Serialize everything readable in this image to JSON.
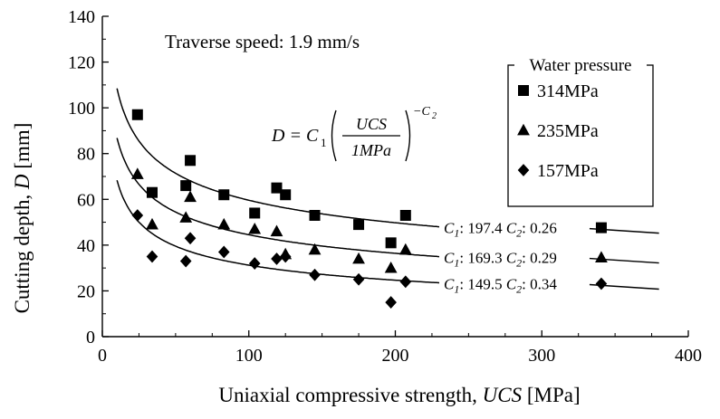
{
  "chart_data": {
    "type": "scatter",
    "annotation": "Traverse speed: 1.9 mm/s",
    "xlabel": {
      "main": "Uniaxial compressive strength, ",
      "ital": "UCS",
      "unit": " [MPa]"
    },
    "ylabel": {
      "main": "Cutting depth, ",
      "ital": "D",
      "unit": " [mm]"
    },
    "xlim": [
      0,
      400
    ],
    "ylim": [
      0,
      140
    ],
    "xticks": [
      0,
      100,
      200,
      300,
      400
    ],
    "yticks": [
      0,
      20,
      40,
      60,
      80,
      100,
      120,
      140
    ],
    "grid": false,
    "legend": {
      "title": "Water pressure",
      "placement": "top-right",
      "entries": [
        "314MPa",
        "235MPa",
        "157MPa"
      ]
    },
    "formula": {
      "lhs": "D = C",
      "sub1": "1",
      "numerator": "UCS",
      "denominator": "1MPa",
      "exp": "−C",
      "exp_sub": "2"
    },
    "series": [
      {
        "name": "314MPa",
        "marker": "square",
        "points": [
          [
            24,
            97
          ],
          [
            34,
            63
          ],
          [
            57,
            66
          ],
          [
            60,
            77
          ],
          [
            83,
            62
          ],
          [
            104,
            54
          ],
          [
            119,
            65
          ],
          [
            125,
            62
          ],
          [
            145,
            53
          ],
          [
            175,
            49
          ],
          [
            197,
            41
          ],
          [
            207,
            53
          ]
        ],
        "fit": {
          "C1": "197.4",
          "C2": "0.26",
          "c1": 197.4,
          "c2": 0.26,
          "x_range": [
            10,
            230
          ]
        },
        "fit_label": {
          "c1_prefix": "C",
          "c1_sub": "1",
          "c1_value": ": 197.4",
          "c2_prefix": "C",
          "c2_sub": "2",
          "c2_value": ": 0.26"
        },
        "legend_fit_x": [
          340,
          380
        ]
      },
      {
        "name": "235MPa",
        "marker": "triangle",
        "points": [
          [
            24,
            71
          ],
          [
            34,
            49
          ],
          [
            57,
            52
          ],
          [
            60,
            61
          ],
          [
            83,
            49
          ],
          [
            104,
            47
          ],
          [
            119,
            46
          ],
          [
            125,
            36
          ],
          [
            145,
            38
          ],
          [
            175,
            34
          ],
          [
            197,
            30
          ],
          [
            207,
            38
          ]
        ],
        "fit": {
          "C1": "169.3",
          "C2": "0.29",
          "c1": 169.3,
          "c2": 0.29,
          "x_range": [
            10,
            230
          ]
        },
        "fit_label": {
          "c1_prefix": "C",
          "c1_sub": "1",
          "c1_value": ": 169.3",
          "c2_prefix": "C",
          "c2_sub": "2",
          "c2_value": ": 0.29"
        },
        "legend_fit_x": [
          340,
          380
        ]
      },
      {
        "name": "157MPa",
        "marker": "diamond",
        "points": [
          [
            24,
            53
          ],
          [
            34,
            35
          ],
          [
            57,
            33
          ],
          [
            60,
            43
          ],
          [
            83,
            37
          ],
          [
            104,
            32
          ],
          [
            119,
            34
          ],
          [
            125,
            35
          ],
          [
            145,
            27
          ],
          [
            175,
            25
          ],
          [
            197,
            15
          ],
          [
            207,
            24
          ]
        ],
        "fit": {
          "C1": "149.5",
          "C2": "0.34",
          "c1": 149.5,
          "c2": 0.34,
          "x_range": [
            10,
            230
          ]
        },
        "fit_label": {
          "c1_prefix": "C",
          "c1_sub": "1",
          "c1_value": ": 149.5",
          "c2_prefix": "C",
          "c2_sub": "2",
          "c2_value": ": 0.34"
        },
        "legend_fit_x": [
          340,
          380
        ]
      }
    ]
  }
}
